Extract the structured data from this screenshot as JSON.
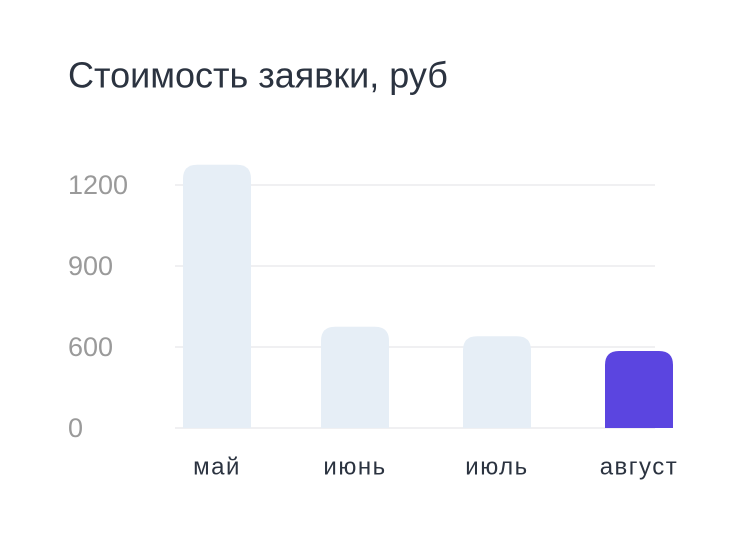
{
  "chart_data": {
    "type": "bar",
    "title": "Стоимость заявки, руб",
    "categories": [
      "май",
      "июнь",
      "июль",
      "август"
    ],
    "values": [
      1275,
      675,
      640,
      570
    ],
    "colors": [
      "#e6eef6",
      "#e6eef6",
      "#e6eef6",
      "#5b45e0"
    ],
    "ylim": [
      0,
      1300
    ],
    "yticks": [
      0,
      600,
      900,
      1200
    ],
    "grid": true
  }
}
